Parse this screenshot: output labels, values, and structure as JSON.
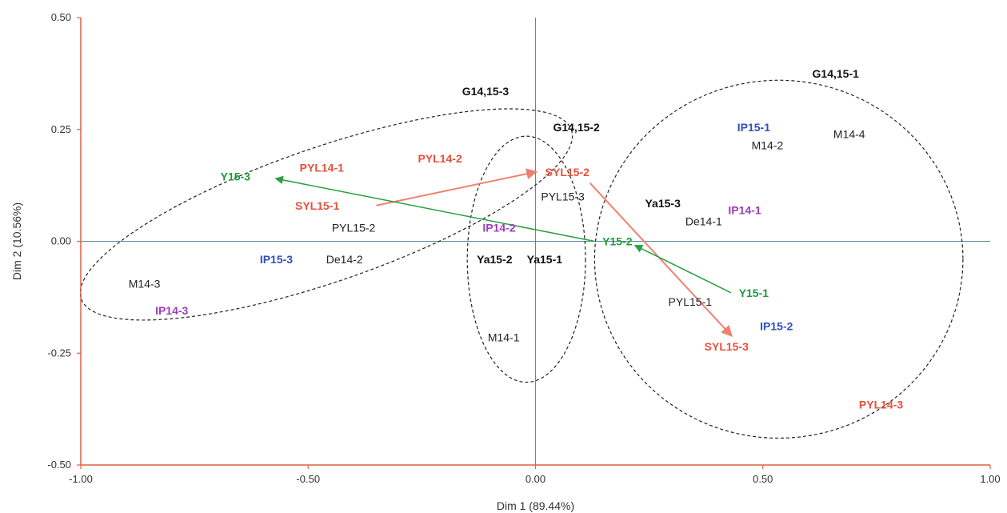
{
  "chart_data": {
    "type": "scatter",
    "title": "",
    "xlabel": "Dim 1 (89.44%)",
    "ylabel": "Dim 2 (10.56%)",
    "xlim": [
      -1.0,
      1.0
    ],
    "ylim": [
      -0.5,
      0.5
    ],
    "x_ticks": [
      "-1.00",
      "-0.50",
      "0.00",
      "0.50",
      "1.00"
    ],
    "y_ticks": [
      "0.50",
      "0.25",
      "0.00",
      "-0.25",
      "-0.50"
    ],
    "x_tick_values": [
      -1.0,
      -0.5,
      0.0,
      0.5,
      1.0
    ],
    "y_tick_values": [
      0.5,
      0.25,
      0.0,
      -0.25,
      -0.5
    ],
    "colors": {
      "axis_frame": "#e06040",
      "zero_lines": "#5a8a9a",
      "black": "#111111",
      "gray_text": "#222222",
      "red": "#e8503a",
      "green": "#1f9a3a",
      "blue": "#3050b8",
      "purple": "#9a40b8",
      "red_arrow": "#f08070",
      "green_arrow": "#2aa040"
    },
    "points": [
      {
        "label": "Y15-3",
        "x": -0.66,
        "y": 0.145,
        "color": "green",
        "bold": true
      },
      {
        "label": "PYL14-1",
        "x": -0.47,
        "y": 0.165,
        "color": "red",
        "bold": true
      },
      {
        "label": "PYL14-2",
        "x": -0.21,
        "y": 0.185,
        "color": "red",
        "bold": true
      },
      {
        "label": "SYL15-1",
        "x": -0.48,
        "y": 0.08,
        "color": "red",
        "bold": true
      },
      {
        "label": "PYL15-2",
        "x": -0.4,
        "y": 0.03,
        "color": "gray_text",
        "bold": false
      },
      {
        "label": "IP15-3",
        "x": -0.57,
        "y": -0.04,
        "color": "blue",
        "bold": true
      },
      {
        "label": "De14-2",
        "x": -0.42,
        "y": -0.04,
        "color": "gray_text",
        "bold": false
      },
      {
        "label": "M14-3",
        "x": -0.86,
        "y": -0.095,
        "color": "gray_text",
        "bold": false
      },
      {
        "label": "IP14-3",
        "x": -0.8,
        "y": -0.155,
        "color": "purple",
        "bold": true
      },
      {
        "label": "IP14-2",
        "x": -0.08,
        "y": 0.03,
        "color": "purple",
        "bold": true
      },
      {
        "label": "Ya15-2",
        "x": -0.09,
        "y": -0.04,
        "color": "black",
        "bold": true
      },
      {
        "label": "Ya15-1",
        "x": 0.02,
        "y": -0.04,
        "color": "black",
        "bold": true
      },
      {
        "label": "M14-1",
        "x": -0.07,
        "y": -0.215,
        "color": "gray_text",
        "bold": false
      },
      {
        "label": "SYL15-2",
        "x": 0.07,
        "y": 0.155,
        "color": "red",
        "bold": true
      },
      {
        "label": "PYL15-3",
        "x": 0.06,
        "y": 0.1,
        "color": "gray_text",
        "bold": false
      },
      {
        "label": "Y15-2",
        "x": 0.18,
        "y": 0.0,
        "color": "green",
        "bold": true
      },
      {
        "label": "Ya15-3",
        "x": 0.28,
        "y": 0.085,
        "color": "black",
        "bold": true
      },
      {
        "label": "De14-1",
        "x": 0.37,
        "y": 0.045,
        "color": "gray_text",
        "bold": false
      },
      {
        "label": "IP14-1",
        "x": 0.46,
        "y": 0.07,
        "color": "purple",
        "bold": true
      },
      {
        "label": "IP15-1",
        "x": 0.48,
        "y": 0.255,
        "color": "blue",
        "bold": true
      },
      {
        "label": "M14-2",
        "x": 0.51,
        "y": 0.215,
        "color": "gray_text",
        "bold": false
      },
      {
        "label": "M14-4",
        "x": 0.69,
        "y": 0.24,
        "color": "gray_text",
        "bold": false
      },
      {
        "label": "Y15-1",
        "x": 0.48,
        "y": -0.115,
        "color": "green",
        "bold": true
      },
      {
        "label": "PYL15-1",
        "x": 0.34,
        "y": -0.135,
        "color": "gray_text",
        "bold": false
      },
      {
        "label": "IP15-2",
        "x": 0.53,
        "y": -0.19,
        "color": "blue",
        "bold": true
      },
      {
        "label": "SYL15-3",
        "x": 0.42,
        "y": -0.235,
        "color": "red",
        "bold": true
      },
      {
        "label": "PYL14-3",
        "x": 0.76,
        "y": -0.365,
        "color": "red",
        "bold": true
      }
    ],
    "group_labels": [
      {
        "label": "G14,15-3",
        "x": -0.11,
        "y": 0.335
      },
      {
        "label": "G14,15-2",
        "x": 0.09,
        "y": 0.255
      },
      {
        "label": "G14,15-1",
        "x": 0.66,
        "y": 0.375
      }
    ],
    "ellipses": [
      {
        "name": "G14,15-3",
        "cx": -0.46,
        "cy": 0.06,
        "rx": 0.57,
        "ry": 0.15,
        "angle_deg": 19
      },
      {
        "name": "G14,15-2",
        "cx": -0.02,
        "cy": -0.04,
        "rx": 0.13,
        "ry": 0.275,
        "angle_deg": 0
      },
      {
        "name": "G14,15-1",
        "cx": 0.535,
        "cy": -0.04,
        "rx": 0.405,
        "ry": 0.4,
        "angle_deg": 0
      }
    ],
    "arrows": [
      {
        "color": "red_arrow",
        "path": [
          [
            -0.35,
            0.08
          ],
          [
            0.0,
            0.155
          ]
        ]
      },
      {
        "color": "red_arrow",
        "path": [
          [
            0.12,
            0.13
          ],
          [
            0.43,
            -0.21
          ]
        ]
      },
      {
        "color": "green_arrow",
        "path": [
          [
            0.13,
            0.0
          ],
          [
            -0.57,
            0.14
          ]
        ]
      },
      {
        "color": "green_arrow",
        "path": [
          [
            0.43,
            -0.115
          ],
          [
            0.22,
            -0.01
          ]
        ]
      }
    ]
  }
}
